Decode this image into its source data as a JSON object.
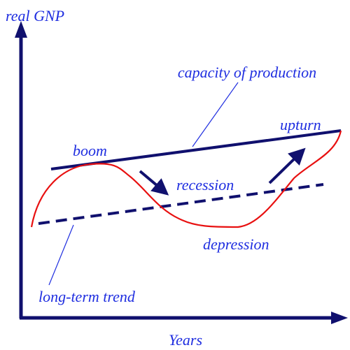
{
  "diagram": {
    "y_axis_label": "real GNP",
    "x_axis_label": "Years",
    "labels": {
      "capacity": "capacity of production",
      "boom": "boom",
      "recession": "recession",
      "upturn": "upturn",
      "depression": "depression",
      "trend": "long-term trend"
    }
  }
}
